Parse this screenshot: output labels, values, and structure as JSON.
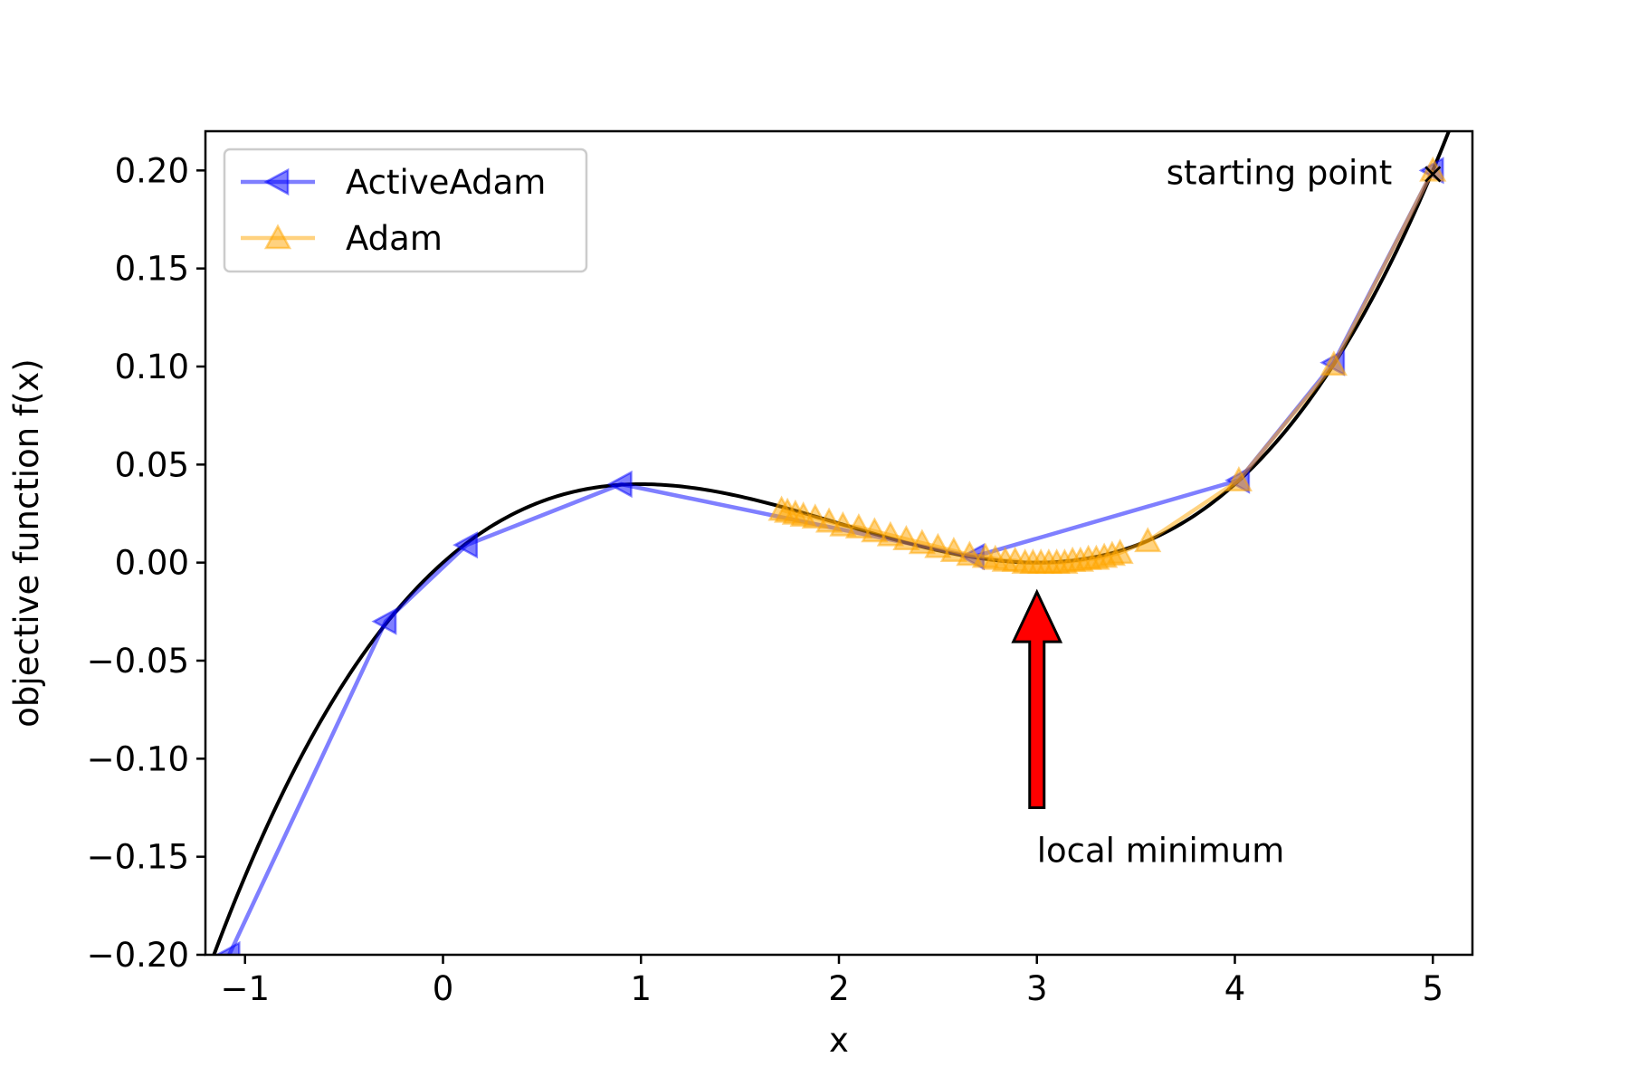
{
  "chart_data": {
    "type": "line",
    "xlabel": "x",
    "ylabel": "objective function f(x)",
    "xlim": [
      -1.2,
      5.2
    ],
    "ylim": [
      -0.2,
      0.22
    ],
    "x_ticks": [
      -1,
      0,
      1,
      2,
      3,
      4,
      5
    ],
    "x_tick_labels": [
      "−1",
      "0",
      "1",
      "2",
      "3",
      "4",
      "5"
    ],
    "y_ticks": [
      -0.2,
      -0.15,
      -0.1,
      -0.05,
      0.0,
      0.05,
      0.1,
      0.15,
      0.2
    ],
    "y_tick_labels": [
      "−0.20",
      "−0.15",
      "−0.10",
      "−0.05",
      "0.00",
      "0.05",
      "0.10",
      "0.15",
      "0.20"
    ],
    "grid": false,
    "legend_position": "upper-left",
    "objective_curve": {
      "x_range": [
        -1.2,
        5.1
      ],
      "formula": "0.0048 * x * (x - 3)^2 ... shape: local max ~0.04 at x=1, local min 0 at x=3",
      "color": "#000000"
    },
    "series": [
      {
        "name": "ActiveAdam",
        "color": "#0000ff",
        "marker": "triangle-left",
        "x": [
          5.0,
          4.5,
          4.02,
          2.68,
          0.9,
          0.12,
          -0.29,
          -1.08
        ],
        "y": [
          0.2,
          0.102,
          0.042,
          0.003,
          0.04,
          0.009,
          -0.03,
          -0.2
        ]
      },
      {
        "name": "Adam",
        "color": "#ffa500",
        "marker": "triangle-up",
        "x": [
          5.0,
          4.5,
          4.02,
          3.56,
          3.42,
          3.38,
          3.34,
          3.3,
          3.26,
          3.22,
          3.18,
          3.14,
          3.1,
          3.06,
          3.02,
          2.98,
          2.94,
          2.89,
          2.84,
          2.79,
          2.74,
          2.66,
          2.58,
          2.5,
          2.42,
          2.34,
          2.26,
          2.18,
          2.1,
          2.02,
          1.95,
          1.88,
          1.82,
          1.78,
          1.74,
          1.71
        ],
        "y": [
          0.2,
          0.101,
          0.042,
          0.011,
          0.005,
          0.004,
          0.003,
          0.002,
          0.002,
          0.001,
          0.001,
          0.0,
          0.0,
          0.0,
          0.0,
          0.0,
          0.0,
          0.001,
          0.001,
          0.002,
          0.003,
          0.004,
          0.006,
          0.008,
          0.01,
          0.012,
          0.014,
          0.016,
          0.018,
          0.019,
          0.021,
          0.023,
          0.024,
          0.025,
          0.026,
          0.027
        ]
      }
    ],
    "annotations": [
      {
        "text": "starting point",
        "x": 5.0,
        "y": 0.2,
        "marker": "×",
        "marker_color": "#ff0000"
      },
      {
        "text": "local minimum",
        "arrow_tip_x": 3.0,
        "arrow_tip_y": -0.015,
        "arrow_tail_y": -0.125,
        "arrow_color": "#ff0000"
      }
    ]
  }
}
